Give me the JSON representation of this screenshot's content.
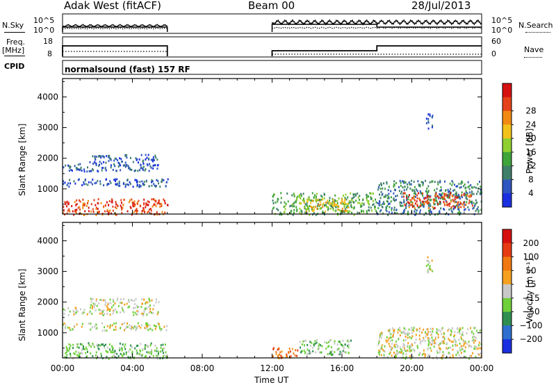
{
  "header": {
    "station": "Adak West (fitACF)",
    "beam": "Beam 00",
    "date": "28/Jul/2013"
  },
  "panels": {
    "nsky_label": "N.Sky",
    "nsearch_label": "N.Search",
    "nsky_ticks": [
      "10^5",
      "10^0"
    ],
    "nsearch_ticks": [
      "10^5",
      "10^0"
    ],
    "freq_label": "Freq.",
    "freq_unit": "[MHz]",
    "freq_ticks": [
      "18",
      "8"
    ],
    "nave_label": "Nave",
    "nave_ticks": [
      "60",
      "0"
    ],
    "cpid_label": "CPID",
    "cpid_text": "normalsound (fast) 157 RF"
  },
  "chart_data": [
    {
      "type": "heatmap",
      "name": "power",
      "ylabel": "Slant Range [km]",
      "xlabel": "Time UT",
      "xlim": [
        "00:00",
        "24:00"
      ],
      "ylim": [
        180,
        4600
      ],
      "x_ticks": [
        "00:00",
        "04:00",
        "08:00",
        "12:00",
        "16:00",
        "20:00",
        "00:00"
      ],
      "y_ticks": [
        1000,
        2000,
        3000,
        4000
      ],
      "colorbar": {
        "label": "Power [dB]",
        "ticks": [
          "4",
          "8",
          "12",
          "16",
          "20",
          "24",
          "28"
        ],
        "colors": [
          "#1a2fe0",
          "#2e55c0",
          "#3f7f6a",
          "#3fa43a",
          "#8fcf2f",
          "#f2c21b",
          "#f28a12",
          "#e5421a",
          "#d51010"
        ]
      },
      "data_gap_hours": [
        6,
        12
      ],
      "regions": [
        {
          "t0": 0.0,
          "t1": 6.0,
          "r0": 180,
          "r1": 700,
          "level": 7
        },
        {
          "t0": 0.0,
          "t1": 6.0,
          "r0": 1100,
          "r1": 1350,
          "level": 1
        },
        {
          "t0": 0.0,
          "t1": 5.5,
          "r0": 1600,
          "r1": 1850,
          "level": 1
        },
        {
          "t0": 1.5,
          "t1": 5.5,
          "r0": 1850,
          "r1": 2150,
          "level": 1
        },
        {
          "t0": 12.0,
          "t1": 18.0,
          "r0": 180,
          "r1": 900,
          "level": 3
        },
        {
          "t0": 13.5,
          "t1": 16.5,
          "r0": 300,
          "r1": 700,
          "level": 5
        },
        {
          "t0": 18.0,
          "t1": 24.0,
          "r0": 180,
          "r1": 1300,
          "level": 2
        },
        {
          "t0": 19.5,
          "t1": 23.5,
          "r0": 400,
          "r1": 900,
          "level": 7
        },
        {
          "t0": 20.8,
          "t1": 21.2,
          "r0": 3000,
          "r1": 3500,
          "level": 1
        }
      ]
    },
    {
      "type": "heatmap",
      "name": "velocity",
      "ylabel": "Slant Range [km]",
      "xlabel": "Time UT",
      "xlim": [
        "00:00",
        "24:00"
      ],
      "ylim": [
        180,
        4600
      ],
      "x_ticks": [
        "00:00",
        "04:00",
        "08:00",
        "12:00",
        "16:00",
        "20:00",
        "00:00"
      ],
      "y_ticks": [
        1000,
        2000,
        3000,
        4000
      ],
      "colorbar": {
        "label": "Velocity [m s⁻¹]",
        "ticks": [
          "200",
          "100",
          "50",
          "15",
          "−15",
          "−50",
          "−100",
          "−200"
        ],
        "colors": [
          "#1a2fe0",
          "#2e6fd0",
          "#2f8f50",
          "#6fd03a",
          "#c8c8c8",
          "#f5a020",
          "#f07810",
          "#e63a14",
          "#d50f0f"
        ]
      },
      "data_gap_hours": [
        6,
        12
      ],
      "regions": [
        {
          "t0": 0.0,
          "t1": 6.0,
          "r0": 180,
          "r1": 700,
          "level": 3
        },
        {
          "t0": 0.0,
          "t1": 6.0,
          "r0": 1100,
          "r1": 1350,
          "level": 4
        },
        {
          "t0": 0.0,
          "t1": 5.5,
          "r0": 1600,
          "r1": 1850,
          "level": 4
        },
        {
          "t0": 1.5,
          "t1": 5.5,
          "r0": 1850,
          "r1": 2150,
          "level": 4
        },
        {
          "t0": 12.0,
          "t1": 13.5,
          "r0": 180,
          "r1": 550,
          "level": 6
        },
        {
          "t0": 13.5,
          "t1": 16.5,
          "r0": 300,
          "r1": 800,
          "level": 3
        },
        {
          "t0": 18.0,
          "t1": 24.0,
          "r0": 180,
          "r1": 1200,
          "level": 4
        },
        {
          "t0": 20.8,
          "t1": 21.2,
          "r0": 3000,
          "r1": 3500,
          "level": 4
        }
      ]
    }
  ]
}
